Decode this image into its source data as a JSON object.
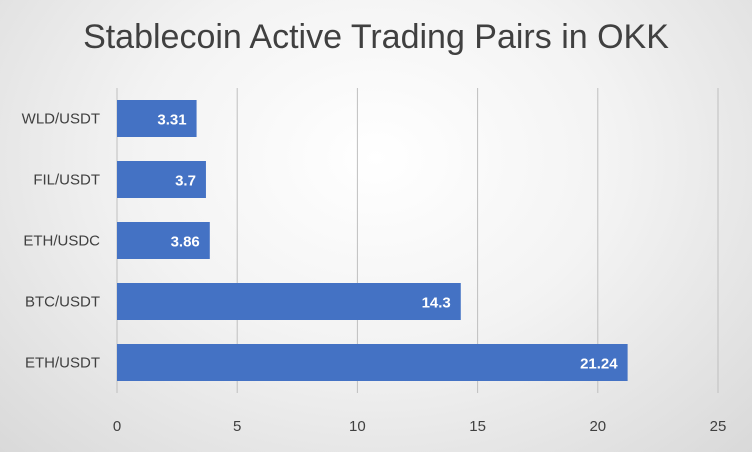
{
  "chart_data": {
    "type": "bar",
    "orientation": "horizontal",
    "title": "Stablecoin Active Trading Pairs in OKK",
    "categories": [
      "WLD/USDT",
      "FIL/USDT",
      "ETH/USDC",
      "BTC/USDT",
      "ETH/USDT"
    ],
    "values": [
      3.31,
      3.7,
      3.86,
      14.3,
      21.24
    ],
    "data_labels": [
      "3.31",
      "3.7",
      "3.86",
      "14.3",
      "21.24"
    ],
    "xlim": [
      0,
      25
    ],
    "xticks": [
      0,
      5,
      10,
      15,
      20,
      25
    ],
    "xtick_labels": [
      "0",
      "5",
      "10",
      "15",
      "20",
      "25"
    ],
    "grid": "vertical",
    "legend": "none",
    "bar_color": "#4472C4"
  }
}
